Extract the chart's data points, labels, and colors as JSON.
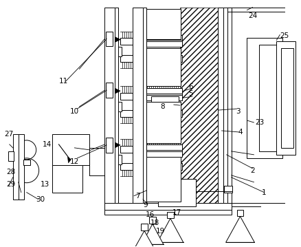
{
  "bg_color": "#ffffff",
  "lc": "#000000",
  "lw": 0.7,
  "figsize": [
    4.38,
    3.59
  ],
  "dpi": 100
}
